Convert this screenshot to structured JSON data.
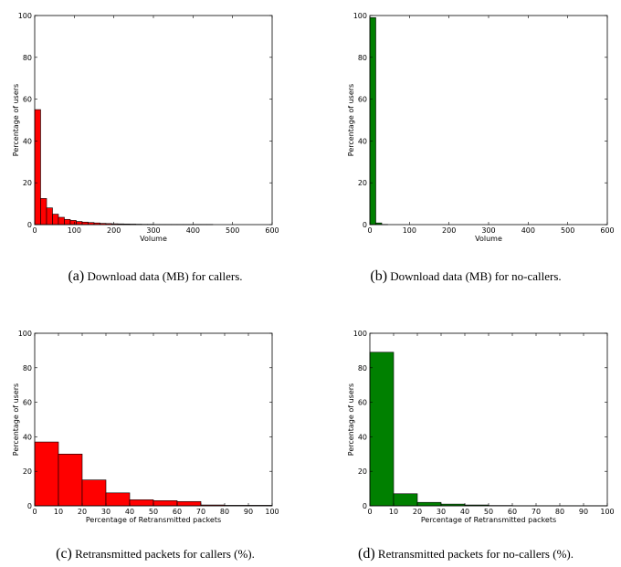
{
  "chart_data": [
    {
      "id": "a",
      "type": "bar",
      "caption_letter": "(a)",
      "caption_text": "Download data (MB) for callers.",
      "xlabel": "Volume",
      "ylabel": "Percentage of users",
      "xlim": [
        0,
        600
      ],
      "ylim": [
        0,
        100
      ],
      "xticks": [
        0,
        100,
        200,
        300,
        400,
        500,
        600
      ],
      "yticks": [
        0,
        20,
        40,
        60,
        80,
        100
      ],
      "bin_width": 15,
      "bar_color": "#ff0000",
      "values": [
        55,
        12.5,
        8,
        5,
        3.5,
        2.5,
        2,
        1.5,
        1.2,
        1,
        0.8,
        0.6,
        0.5,
        0.4,
        0.35,
        0.3,
        0.25,
        0.2,
        0.15,
        0.15,
        0.1,
        0.1,
        0.1,
        0.1,
        0.1,
        0.1,
        0.1,
        0.1,
        0.1,
        0.1,
        0,
        0,
        0,
        0,
        0,
        0,
        0,
        0,
        0,
        0
      ]
    },
    {
      "id": "b",
      "type": "bar",
      "caption_letter": "(b)",
      "caption_text": "Download data (MB) for no-callers.",
      "xlabel": "Volume",
      "ylabel": "Percentage of users",
      "xlim": [
        0,
        600
      ],
      "ylim": [
        0,
        100
      ],
      "xticks": [
        0,
        100,
        200,
        300,
        400,
        500,
        600
      ],
      "yticks": [
        0,
        20,
        40,
        60,
        80,
        100
      ],
      "bin_width": 15,
      "bar_color": "#008000",
      "values": [
        99,
        0.8,
        0.1,
        0,
        0,
        0,
        0,
        0,
        0,
        0,
        0,
        0,
        0,
        0,
        0,
        0,
        0,
        0,
        0,
        0,
        0,
        0,
        0,
        0,
        0,
        0,
        0,
        0,
        0,
        0,
        0,
        0,
        0,
        0,
        0,
        0,
        0,
        0,
        0,
        0
      ]
    },
    {
      "id": "c",
      "type": "bar",
      "caption_letter": "(c)",
      "caption_text": "Retransmitted packets for callers (%).",
      "xlabel": "Percentage of Retransmitted packets",
      "ylabel": "Percentage of users",
      "xlim": [
        0,
        100
      ],
      "ylim": [
        0,
        100
      ],
      "xticks": [
        0,
        10,
        20,
        30,
        40,
        50,
        60,
        70,
        80,
        90,
        100
      ],
      "yticks": [
        0,
        20,
        40,
        60,
        80,
        100
      ],
      "bin_width": 10,
      "bar_color": "#ff0000",
      "values": [
        37,
        30,
        15,
        7.5,
        3.5,
        3,
        2.5,
        0.5,
        0.3,
        0.3
      ]
    },
    {
      "id": "d",
      "type": "bar",
      "caption_letter": "(d)",
      "caption_text": "Retransmitted packets for no-callers (%).",
      "xlabel": "Percentage of Retransmitted packets",
      "ylabel": "Percentage of users",
      "xlim": [
        0,
        100
      ],
      "ylim": [
        0,
        100
      ],
      "xticks": [
        0,
        10,
        20,
        30,
        40,
        50,
        60,
        70,
        80,
        90,
        100
      ],
      "yticks": [
        0,
        20,
        40,
        60,
        80,
        100
      ],
      "bin_width": 10,
      "bar_color": "#008000",
      "values": [
        89,
        7,
        2,
        1,
        0.5,
        0.2,
        0.1,
        0.1,
        0.1,
        0.1
      ]
    }
  ]
}
